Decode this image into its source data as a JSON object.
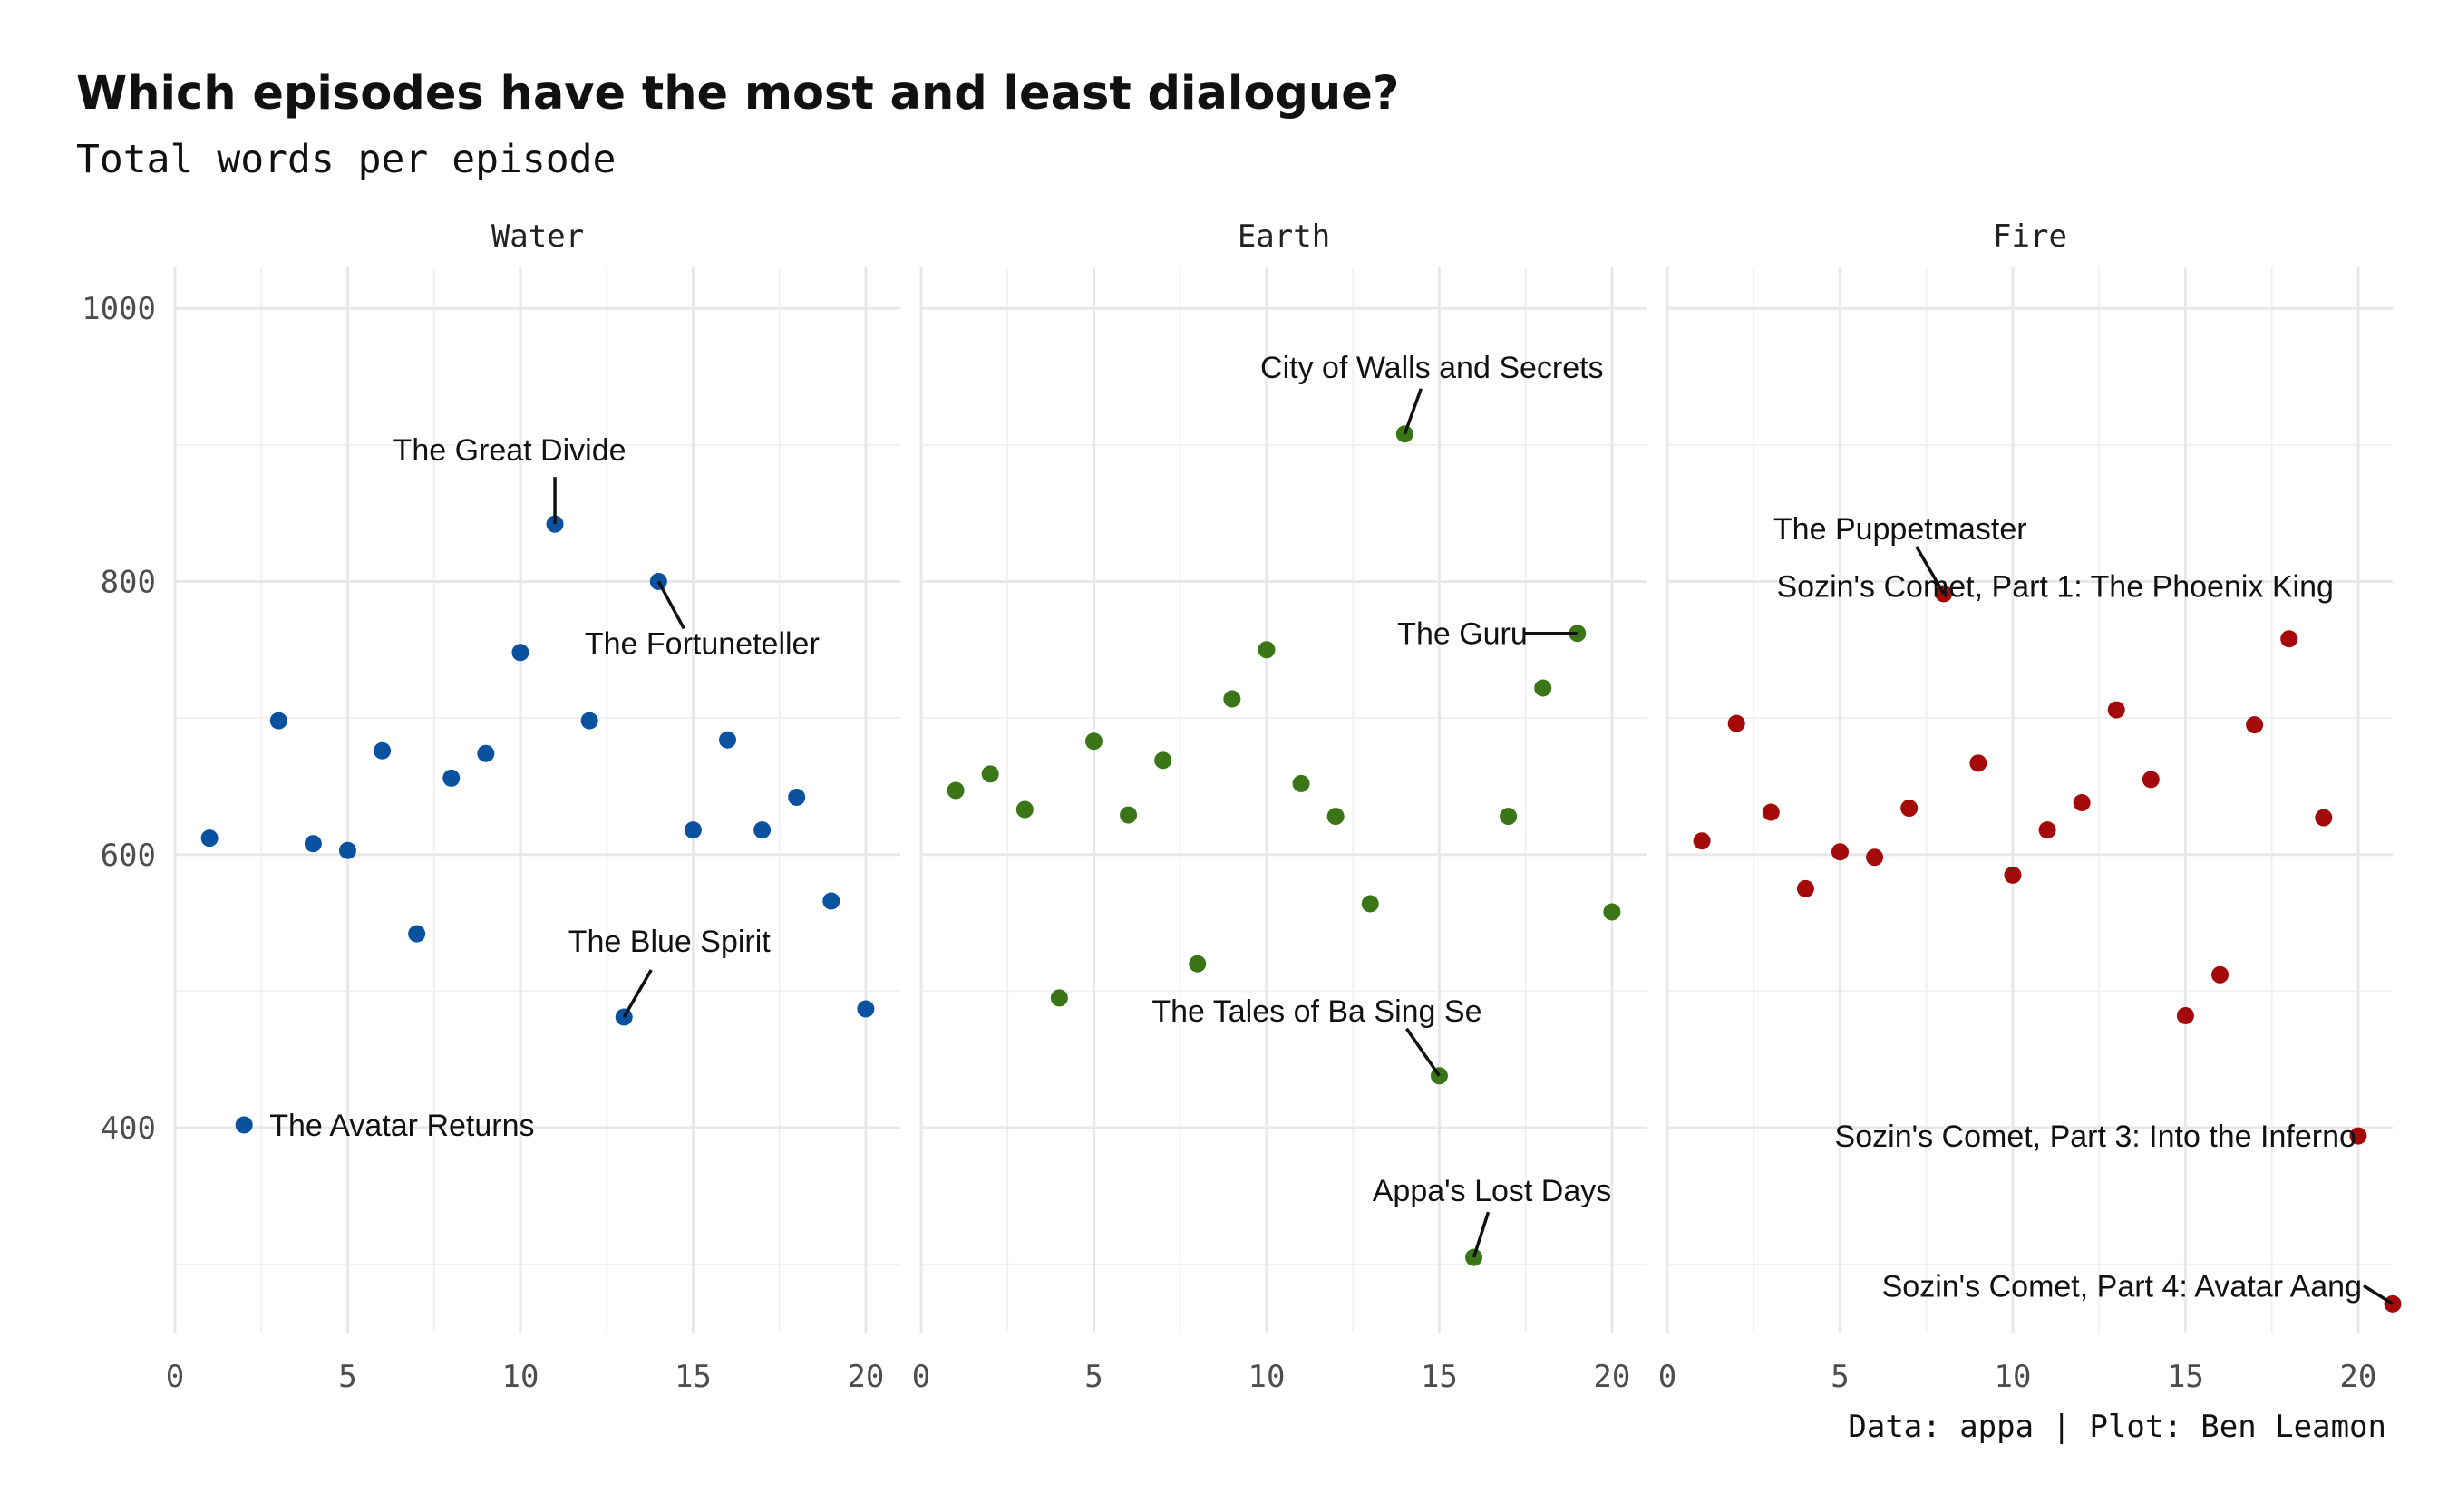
{
  "colors": {
    "Water": "#0a52a0",
    "Earth": "#3a7618",
    "Fire": "#a50a0a"
  },
  "chart_data": {
    "type": "scatter",
    "title": "Which episodes have the most and least dialogue?",
    "subtitle": "Total words per episode",
    "caption": "Data: appa | Plot: Ben Leamon",
    "xlim": [
      0,
      21
    ],
    "ylim": [
      250,
      1030
    ],
    "x_ticks": [
      0,
      5,
      10,
      15,
      20
    ],
    "y_ticks": [
      400,
      600,
      800,
      1000
    ],
    "grid": true,
    "facets": [
      {
        "name": "Water",
        "points": [
          {
            "x": 1,
            "y": 612
          },
          {
            "x": 2,
            "y": 402
          },
          {
            "x": 3,
            "y": 698
          },
          {
            "x": 4,
            "y": 608
          },
          {
            "x": 5,
            "y": 603
          },
          {
            "x": 6,
            "y": 676
          },
          {
            "x": 7,
            "y": 542
          },
          {
            "x": 8,
            "y": 656
          },
          {
            "x": 9,
            "y": 674
          },
          {
            "x": 10,
            "y": 748
          },
          {
            "x": 11,
            "y": 842
          },
          {
            "x": 12,
            "y": 698
          },
          {
            "x": 13,
            "y": 481
          },
          {
            "x": 14,
            "y": 800
          },
          {
            "x": 15,
            "y": 618
          },
          {
            "x": 16,
            "y": 684
          },
          {
            "x": 17,
            "y": 618
          },
          {
            "x": 18,
            "y": 642
          },
          {
            "x": 19,
            "y": 566
          },
          {
            "x": 20,
            "y": 487
          }
        ],
        "labels": [
          {
            "text": "The Great Divide",
            "x": 11,
            "y": 842
          },
          {
            "text": "The Fortuneteller",
            "x": 14,
            "y": 800
          },
          {
            "text": "The Blue Spirit",
            "x": 13,
            "y": 481
          },
          {
            "text": "The Avatar Returns",
            "x": 2,
            "y": 402
          }
        ]
      },
      {
        "name": "Earth",
        "points": [
          {
            "x": 1,
            "y": 647
          },
          {
            "x": 2,
            "y": 659
          },
          {
            "x": 3,
            "y": 633
          },
          {
            "x": 4,
            "y": 495
          },
          {
            "x": 5,
            "y": 683
          },
          {
            "x": 6,
            "y": 629
          },
          {
            "x": 7,
            "y": 669
          },
          {
            "x": 8,
            "y": 520
          },
          {
            "x": 9,
            "y": 714
          },
          {
            "x": 10,
            "y": 750
          },
          {
            "x": 11,
            "y": 652
          },
          {
            "x": 12,
            "y": 628
          },
          {
            "x": 13,
            "y": 564
          },
          {
            "x": 14,
            "y": 908
          },
          {
            "x": 15,
            "y": 438
          },
          {
            "x": 16,
            "y": 305
          },
          {
            "x": 17,
            "y": 628
          },
          {
            "x": 18,
            "y": 722
          },
          {
            "x": 19,
            "y": 762
          },
          {
            "x": 20,
            "y": 558
          }
        ],
        "labels": [
          {
            "text": "City of Walls and Secrets",
            "x": 14,
            "y": 908
          },
          {
            "text": "The Guru",
            "x": 19,
            "y": 762
          },
          {
            "text": "The Tales of Ba Sing Se",
            "x": 15,
            "y": 438
          },
          {
            "text": "Appa's Lost Days",
            "x": 16,
            "y": 305
          }
        ]
      },
      {
        "name": "Fire",
        "points": [
          {
            "x": 1,
            "y": 610
          },
          {
            "x": 2,
            "y": 696
          },
          {
            "x": 3,
            "y": 631
          },
          {
            "x": 4,
            "y": 575
          },
          {
            "x": 5,
            "y": 602
          },
          {
            "x": 6,
            "y": 598
          },
          {
            "x": 7,
            "y": 634
          },
          {
            "x": 8,
            "y": 791
          },
          {
            "x": 9,
            "y": 667
          },
          {
            "x": 10,
            "y": 585
          },
          {
            "x": 11,
            "y": 618
          },
          {
            "x": 12,
            "y": 638
          },
          {
            "x": 13,
            "y": 706
          },
          {
            "x": 14,
            "y": 655
          },
          {
            "x": 15,
            "y": 482
          },
          {
            "x": 16,
            "y": 512
          },
          {
            "x": 17,
            "y": 695
          },
          {
            "x": 18,
            "y": 758
          },
          {
            "x": 19,
            "y": 627
          },
          {
            "x": 20,
            "y": 394
          },
          {
            "x": 21,
            "y": 271
          }
        ],
        "labels": [
          {
            "text": "The Puppetmaster",
            "x": 8,
            "y": 791
          },
          {
            "text": "Sozin's Comet, Part 1: The Phoenix King",
            "x": 18,
            "y": 758
          },
          {
            "text": "Sozin's Comet, Part 3: Into the Inferno",
            "x": 20,
            "y": 394
          },
          {
            "text": "Sozin's Comet, Part 4: Avatar Aang",
            "x": 21,
            "y": 271
          }
        ]
      }
    ]
  }
}
